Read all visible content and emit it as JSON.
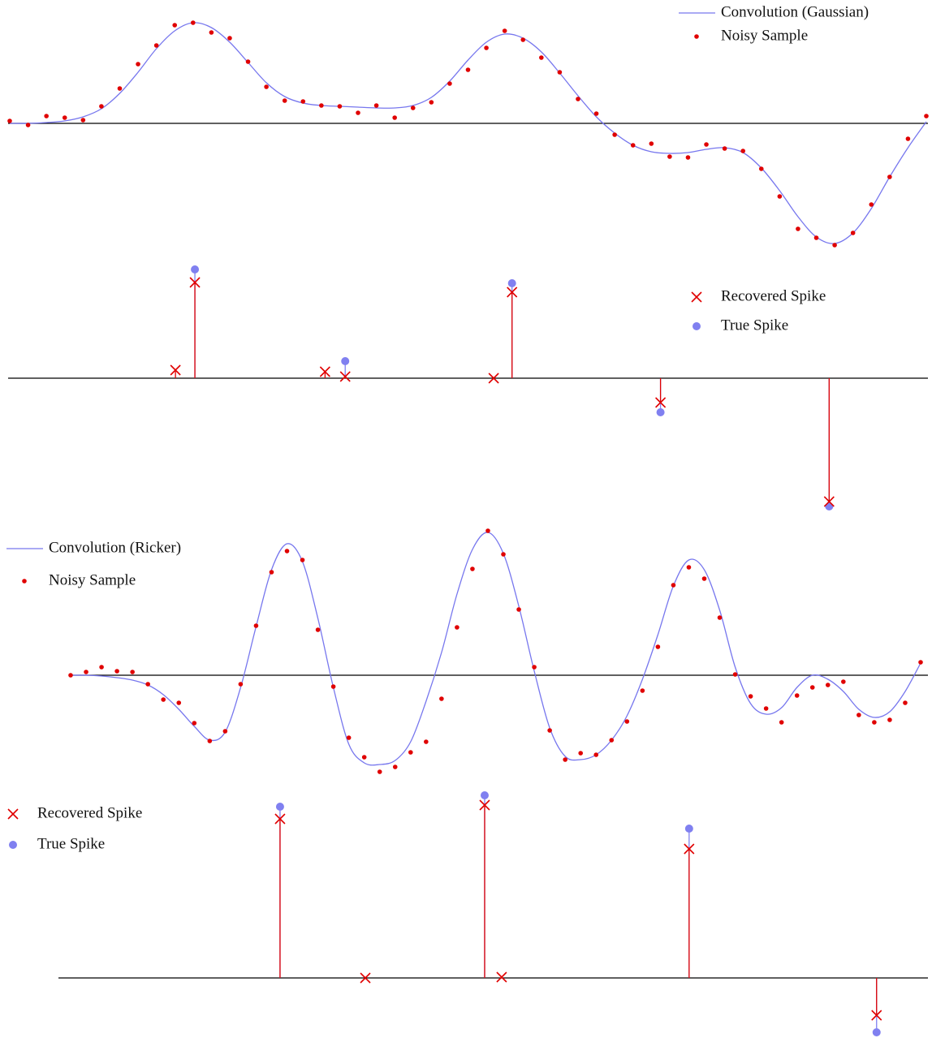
{
  "chart_data": [
    {
      "type": "line",
      "legend": "upper right",
      "x": [
        0,
        1,
        2,
        3,
        4,
        5,
        6,
        7,
        8,
        9,
        10,
        11,
        12,
        13,
        14,
        15,
        16,
        17,
        18,
        19,
        20,
        21,
        22,
        23,
        24,
        25,
        26,
        27,
        28,
        29,
        30,
        31,
        32,
        33,
        34,
        35,
        36,
        37,
        38,
        39,
        40,
        41,
        42,
        43,
        44,
        45,
        46,
        47,
        48,
        49,
        50
      ],
      "xlim": [
        0,
        50
      ],
      "ylim": [
        -1.6,
        1.52
      ],
      "series": [
        {
          "name": "Convolution (Gaussian)",
          "color": "#7777ee",
          "style": "line",
          "values": [
            0.0,
            0.0,
            0.01,
            0.03,
            0.08,
            0.18,
            0.37,
            0.63,
            0.92,
            1.14,
            1.24,
            1.18,
            1.0,
            0.75,
            0.5,
            0.33,
            0.25,
            0.22,
            0.21,
            0.2,
            0.19,
            0.19,
            0.22,
            0.32,
            0.52,
            0.78,
            1.0,
            1.1,
            1.05,
            0.88,
            0.62,
            0.34,
            0.08,
            -0.12,
            -0.27,
            -0.35,
            -0.37,
            -0.36,
            -0.32,
            -0.3,
            -0.36,
            -0.55,
            -0.83,
            -1.15,
            -1.4,
            -1.48,
            -1.35,
            -1.05,
            -0.66,
            -0.3,
            0.02
          ]
        },
        {
          "name": "Noisy Sample",
          "color": "#e00000",
          "style": "dot",
          "values": [
            0.03,
            -0.02,
            0.09,
            0.07,
            0.04,
            0.21,
            0.43,
            0.73,
            0.96,
            1.21,
            1.24,
            1.12,
            1.05,
            0.76,
            0.45,
            0.28,
            0.27,
            0.22,
            0.21,
            0.13,
            0.22,
            0.07,
            0.19,
            0.26,
            0.49,
            0.66,
            0.93,
            1.14,
            1.03,
            0.81,
            0.63,
            0.3,
            0.12,
            -0.14,
            -0.27,
            -0.25,
            -0.41,
            -0.42,
            -0.26,
            -0.31,
            -0.34,
            -0.56,
            -0.9,
            -1.3,
            -1.41,
            -1.5,
            -1.35,
            -1.0,
            -0.66,
            -0.19,
            0.09
          ]
        }
      ]
    },
    {
      "type": "stem",
      "legend": "upper right",
      "xlim": [
        0,
        50
      ],
      "ylim": [
        -1.74,
        1.54
      ],
      "series": [
        {
          "name": "Recovered Spike",
          "color": "#e00000",
          "marker": "x",
          "x": [
            9.04,
            10.1,
            17.2,
            18.3,
            26.4,
            27.4,
            35.5,
            44.7
          ],
          "values": [
            0.1,
            1.18,
            0.08,
            0.02,
            0.0,
            1.06,
            -0.3,
            -1.52
          ]
        },
        {
          "name": "True Spike",
          "color": "#8080f0",
          "marker": "dot",
          "x": [
            10.1,
            18.3,
            27.4,
            35.5,
            44.7
          ],
          "values": [
            1.34,
            0.21,
            1.17,
            -0.42,
            -1.58
          ]
        }
      ]
    },
    {
      "type": "line",
      "legend": "upper left",
      "x": [
        0,
        1,
        2,
        3,
        4,
        5,
        6,
        7,
        8,
        9,
        10,
        11,
        12,
        13,
        14,
        15,
        16,
        17,
        18,
        19,
        20,
        21,
        22,
        23,
        24,
        25,
        26,
        27,
        28,
        29,
        30,
        31,
        32,
        33,
        34,
        35,
        36,
        37,
        38,
        39,
        40,
        41,
        42,
        43,
        44,
        45,
        46,
        47,
        48,
        49,
        50,
        51,
        52,
        53,
        54,
        55
      ],
      "xlim": [
        0,
        55
      ],
      "ylim": [
        -1.28,
        1.92
      ],
      "series": [
        {
          "name": "Convolution (Ricker)",
          "color": "#7777ee",
          "style": "line",
          "values": [
            0,
            0,
            -0.01,
            -0.03,
            -0.06,
            -0.12,
            -0.24,
            -0.42,
            -0.63,
            -0.8,
            -0.7,
            -0.15,
            0.6,
            1.3,
            1.62,
            1.4,
            0.7,
            -0.15,
            -0.85,
            -1.08,
            -1.1,
            -1.05,
            -0.82,
            -0.32,
            0.28,
            1.0,
            1.55,
            1.76,
            1.5,
            0.85,
            0.05,
            -0.65,
            -1.0,
            -1.04,
            -0.98,
            -0.8,
            -0.5,
            -0.05,
            0.5,
            1.1,
            1.42,
            1.3,
            0.8,
            0.1,
            -0.35,
            -0.48,
            -0.4,
            -0.15,
            0.0,
            -0.05,
            -0.2,
            -0.42,
            -0.52,
            -0.45,
            -0.2,
            0.15
          ]
        },
        {
          "name": "Noisy Sample",
          "color": "#e00000",
          "style": "dot",
          "values": [
            0,
            0.04,
            0.1,
            0.05,
            0.04,
            -0.11,
            -0.3,
            -0.34,
            -0.59,
            -0.81,
            -0.69,
            -0.11,
            0.61,
            1.27,
            1.53,
            1.42,
            0.56,
            -0.14,
            -0.77,
            -1.01,
            -1.19,
            -1.13,
            -0.95,
            -0.82,
            -0.29,
            0.59,
            1.31,
            1.78,
            1.49,
            0.81,
            0.1,
            -0.68,
            -1.04,
            -0.96,
            -0.98,
            -0.8,
            -0.57,
            -0.19,
            0.35,
            1.11,
            1.33,
            1.19,
            0.71,
            0.01,
            -0.26,
            -0.41,
            -0.58,
            -0.25,
            -0.15,
            -0.12,
            -0.08,
            -0.49,
            -0.58,
            -0.55,
            -0.34,
            0.16
          ]
        }
      ]
    },
    {
      "type": "stem",
      "legend": "upper left",
      "xlim": [
        0,
        55
      ],
      "ylim": [
        -0.74,
        2.45
      ],
      "series": [
        {
          "name": "Recovered Spike",
          "color": "#e00000",
          "marker": "x",
          "x": [
            13.55,
            19.07,
            26.79,
            27.89,
            40.02,
            52.15
          ],
          "values": [
            1.96,
            0.0,
            2.13,
            0.01,
            1.59,
            -0.46
          ]
        },
        {
          "name": "True Spike",
          "color": "#8080f0",
          "marker": "dot",
          "x": [
            13.55,
            26.79,
            40.02,
            52.15
          ],
          "values": [
            2.11,
            2.25,
            1.84,
            -0.67
          ]
        }
      ]
    }
  ]
}
